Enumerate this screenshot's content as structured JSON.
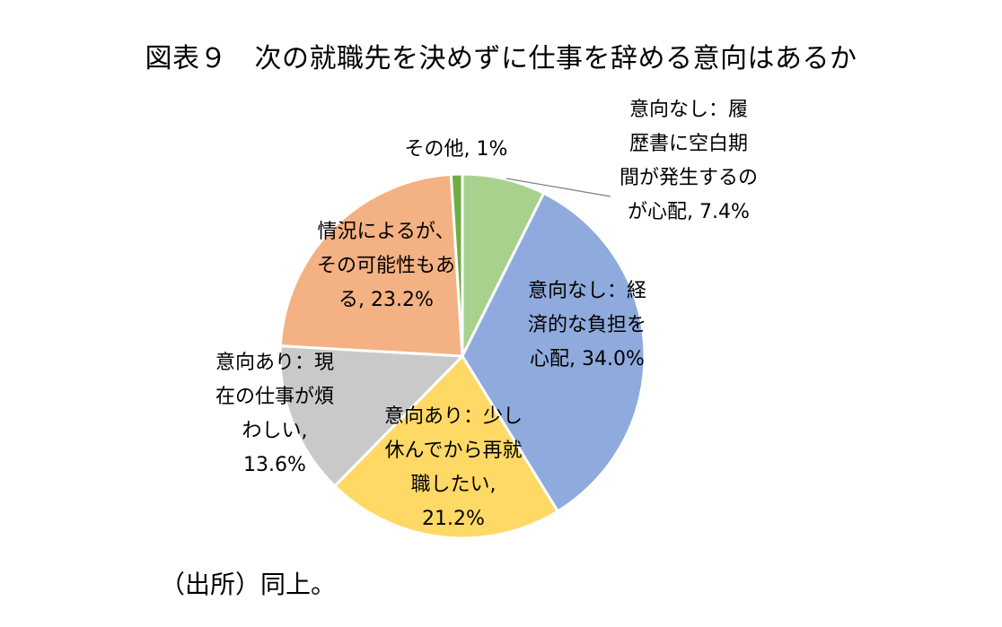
{
  "chart_data": {
    "type": "pie",
    "title": "図表９　次の就職先を決めずに仕事を辞める意向はあるか",
    "start_angle_deg": 0,
    "direction": "clockwise",
    "slices": [
      {
        "label": "意向なし：履\n歴書に空白期\n間が発生するの\nが心配, 7.4%",
        "value": 7.4,
        "color": "#A9D18E"
      },
      {
        "label": "意向なし：経\n済的な負担を\n心配, 34.0%",
        "value": 34.0,
        "color": "#8FAADC"
      },
      {
        "label": "意向あり：少し\n休んでから再就\n職したい,\n21.2%",
        "value": 21.2,
        "color": "#FFD966"
      },
      {
        "label": "意向あり：現\n在の仕事が煩\nわしい,\n13.6%",
        "value": 13.6,
        "color": "#C9C9C9"
      },
      {
        "label": "情況によるが、\nその可能性もあ\nる, 23.2%",
        "value": 23.2,
        "color": "#F4B183"
      },
      {
        "label": "その他, 1%",
        "value": 1.0,
        "color": "#70AD47"
      }
    ]
  },
  "source_note": "（出所）同上。"
}
